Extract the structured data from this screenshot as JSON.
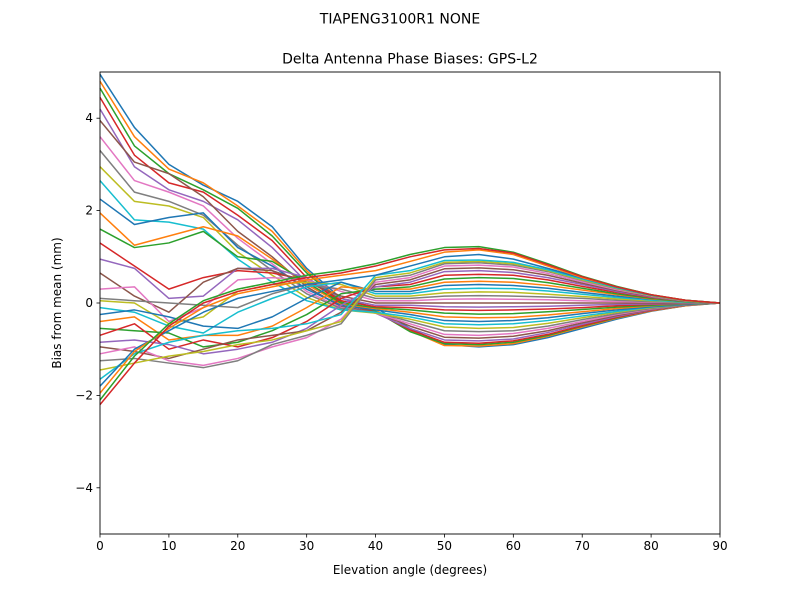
{
  "figure": {
    "suptitle": "TIAPENG3100R1   NONE"
  },
  "chart_data": {
    "type": "line",
    "title": "Delta Antenna Phase Biases: GPS-L2",
    "xlabel": "Elevation angle (degrees)",
    "ylabel": "Bias from mean (mm)",
    "xlim": [
      0,
      90
    ],
    "ylim": [
      -5,
      5
    ],
    "xticks": [
      0,
      10,
      20,
      30,
      40,
      50,
      60,
      70,
      80,
      90
    ],
    "yticks": [
      -4,
      -2,
      0,
      2,
      4
    ],
    "grid": false,
    "legend": "none",
    "x": [
      0,
      5,
      10,
      15,
      20,
      25,
      30,
      35,
      40,
      45,
      50,
      55,
      60,
      65,
      70,
      75,
      80,
      85,
      90
    ],
    "palette": [
      "#1f77b4",
      "#ff7f0e",
      "#2ca02c",
      "#d62728",
      "#9467bd",
      "#8c564b",
      "#e377c2",
      "#7f7f7f",
      "#bcbd22",
      "#17becf"
    ],
    "series": [
      {
        "values": [
          4.95,
          3.8,
          3.0,
          2.55,
          2.2,
          1.65,
          0.75,
          0.1,
          -0.1,
          -0.55,
          -0.9,
          -0.95,
          -0.9,
          -0.75,
          -0.55,
          -0.35,
          -0.18,
          -0.06,
          0.0
        ]
      },
      {
        "values": [
          4.8,
          3.6,
          2.9,
          2.6,
          2.1,
          1.55,
          0.7,
          0.05,
          -0.15,
          -0.6,
          -0.92,
          -0.93,
          -0.88,
          -0.72,
          -0.52,
          -0.33,
          -0.17,
          -0.06,
          0.0
        ]
      },
      {
        "values": [
          4.65,
          3.4,
          2.8,
          2.45,
          2.05,
          1.45,
          0.65,
          0.02,
          -0.18,
          -0.62,
          -0.88,
          -0.9,
          -0.85,
          -0.7,
          -0.5,
          -0.32,
          -0.16,
          -0.05,
          0.0
        ]
      },
      {
        "values": [
          4.45,
          3.2,
          2.6,
          2.4,
          1.9,
          1.35,
          0.55,
          0.0,
          -0.2,
          -0.58,
          -0.85,
          -0.87,
          -0.82,
          -0.68,
          -0.49,
          -0.31,
          -0.16,
          -0.05,
          0.0
        ]
      },
      {
        "values": [
          4.2,
          2.95,
          2.45,
          2.2,
          1.8,
          1.2,
          0.45,
          -0.05,
          -0.22,
          -0.55,
          -0.8,
          -0.82,
          -0.78,
          -0.64,
          -0.46,
          -0.29,
          -0.15,
          -0.05,
          0.0
        ]
      },
      {
        "values": [
          3.95,
          3.05,
          2.8,
          2.3,
          1.55,
          1.0,
          0.35,
          -0.08,
          -0.2,
          -0.5,
          -0.74,
          -0.76,
          -0.72,
          -0.6,
          -0.43,
          -0.27,
          -0.14,
          -0.05,
          0.0
        ]
      },
      {
        "values": [
          3.6,
          2.65,
          2.4,
          2.1,
          1.4,
          0.85,
          0.25,
          -0.1,
          -0.22,
          -0.45,
          -0.68,
          -0.7,
          -0.66,
          -0.55,
          -0.4,
          -0.25,
          -0.13,
          -0.04,
          0.0
        ]
      },
      {
        "values": [
          3.3,
          2.4,
          2.2,
          1.9,
          1.25,
          0.7,
          0.2,
          -0.12,
          -0.2,
          -0.4,
          -0.6,
          -0.62,
          -0.6,
          -0.5,
          -0.36,
          -0.23,
          -0.12,
          -0.04,
          0.0
        ]
      },
      {
        "values": [
          2.95,
          2.2,
          2.1,
          1.85,
          1.1,
          0.6,
          0.12,
          -0.15,
          -0.22,
          -0.35,
          -0.52,
          -0.55,
          -0.53,
          -0.44,
          -0.32,
          -0.2,
          -0.1,
          -0.03,
          0.0
        ]
      },
      {
        "values": [
          2.65,
          1.8,
          1.75,
          1.6,
          0.95,
          0.45,
          0.05,
          -0.15,
          -0.2,
          -0.3,
          -0.45,
          -0.47,
          -0.45,
          -0.38,
          -0.28,
          -0.18,
          -0.09,
          -0.03,
          0.0
        ]
      },
      {
        "values": [
          2.25,
          1.7,
          1.85,
          1.95,
          1.2,
          0.8,
          0.3,
          -0.05,
          -0.15,
          -0.25,
          -0.38,
          -0.4,
          -0.38,
          -0.32,
          -0.23,
          -0.15,
          -0.08,
          -0.03,
          0.0
        ]
      },
      {
        "values": [
          1.95,
          1.25,
          1.45,
          1.65,
          1.45,
          0.95,
          0.4,
          -0.02,
          -0.12,
          -0.2,
          -0.3,
          -0.32,
          -0.31,
          -0.26,
          -0.19,
          -0.12,
          -0.06,
          -0.02,
          0.0
        ]
      },
      {
        "values": [
          1.6,
          1.2,
          1.3,
          1.55,
          1.0,
          0.9,
          0.45,
          0.0,
          -0.1,
          -0.15,
          -0.22,
          -0.24,
          -0.23,
          -0.19,
          -0.14,
          -0.09,
          -0.05,
          -0.02,
          0.0
        ]
      },
      {
        "values": [
          1.3,
          0.8,
          0.3,
          0.55,
          0.7,
          0.65,
          0.5,
          0.05,
          -0.08,
          -0.1,
          -0.15,
          -0.16,
          -0.15,
          -0.13,
          -0.1,
          -0.06,
          -0.03,
          -0.01,
          0.0
        ]
      },
      {
        "values": [
          0.95,
          0.75,
          0.1,
          0.15,
          0.75,
          0.75,
          0.55,
          0.1,
          -0.05,
          -0.05,
          -0.08,
          -0.09,
          -0.08,
          -0.07,
          -0.05,
          -0.03,
          -0.02,
          -0.01,
          0.0
        ]
      },
      {
        "values": [
          0.65,
          0.15,
          -0.2,
          0.45,
          0.75,
          0.7,
          0.45,
          0.15,
          0.0,
          0.0,
          0.0,
          0.0,
          0.0,
          0.0,
          0.0,
          0.0,
          0.0,
          0.0,
          0.0
        ]
      },
      {
        "values": [
          0.3,
          0.35,
          -0.4,
          -0.1,
          0.5,
          0.55,
          0.5,
          0.25,
          0.05,
          0.05,
          0.08,
          0.09,
          0.08,
          0.07,
          0.05,
          0.03,
          0.02,
          0.01,
          0.0
        ]
      },
      {
        "values": [
          0.1,
          0.05,
          0.0,
          -0.05,
          -0.1,
          0.2,
          0.4,
          0.3,
          0.1,
          0.1,
          0.15,
          0.16,
          0.15,
          0.13,
          0.1,
          0.06,
          0.03,
          0.01,
          0.0
        ]
      },
      {
        "values": [
          0.05,
          0.0,
          -0.45,
          -0.3,
          0.25,
          0.4,
          0.45,
          0.4,
          0.15,
          0.15,
          0.22,
          0.24,
          0.23,
          0.19,
          0.14,
          0.09,
          0.05,
          0.02,
          0.0
        ]
      },
      {
        "values": [
          -0.1,
          -0.2,
          -0.5,
          -0.65,
          -0.2,
          0.1,
          0.35,
          0.45,
          0.2,
          0.2,
          0.3,
          0.32,
          0.31,
          0.26,
          0.19,
          0.12,
          0.06,
          0.02,
          0.0
        ]
      },
      {
        "values": [
          -0.25,
          -0.15,
          -0.3,
          -0.5,
          -0.55,
          -0.3,
          0.1,
          0.45,
          0.25,
          0.25,
          0.38,
          0.4,
          0.38,
          0.32,
          0.23,
          0.15,
          0.08,
          0.03,
          0.0
        ]
      },
      {
        "values": [
          -0.4,
          -0.3,
          -0.8,
          -0.7,
          -0.7,
          -0.5,
          -0.1,
          0.35,
          0.3,
          0.3,
          0.45,
          0.47,
          0.45,
          0.38,
          0.28,
          0.18,
          0.09,
          0.03,
          0.0
        ]
      },
      {
        "values": [
          -0.55,
          -0.6,
          -0.65,
          -0.95,
          -0.85,
          -0.6,
          -0.25,
          0.2,
          0.3,
          0.35,
          0.52,
          0.55,
          0.53,
          0.44,
          0.32,
          0.2,
          0.1,
          0.03,
          0.0
        ]
      },
      {
        "values": [
          -0.7,
          -0.45,
          -1.0,
          -0.8,
          -0.95,
          -0.75,
          -0.4,
          0.1,
          0.35,
          0.4,
          0.6,
          0.62,
          0.6,
          0.5,
          0.36,
          0.23,
          0.12,
          0.04,
          0.0
        ]
      },
      {
        "values": [
          -0.85,
          -0.8,
          -0.9,
          -1.1,
          -1.0,
          -0.85,
          -0.55,
          -0.05,
          0.35,
          0.45,
          0.68,
          0.7,
          0.66,
          0.55,
          0.4,
          0.25,
          0.13,
          0.04,
          0.0
        ]
      },
      {
        "values": [
          -0.95,
          -1.05,
          -1.2,
          -1.0,
          -0.8,
          -0.7,
          -0.6,
          -0.2,
          0.4,
          0.5,
          0.74,
          0.76,
          0.72,
          0.6,
          0.43,
          0.27,
          0.14,
          0.05,
          0.0
        ]
      },
      {
        "values": [
          -1.1,
          -0.95,
          -1.25,
          -1.35,
          -1.2,
          -0.95,
          -0.75,
          -0.35,
          0.45,
          0.55,
          0.8,
          0.82,
          0.78,
          0.64,
          0.46,
          0.29,
          0.15,
          0.05,
          0.0
        ]
      },
      {
        "values": [
          -1.25,
          -1.2,
          -1.3,
          -1.4,
          -1.25,
          -0.9,
          -0.7,
          -0.45,
          0.5,
          0.6,
          0.85,
          0.87,
          0.82,
          0.68,
          0.49,
          0.31,
          0.16,
          0.05,
          0.0
        ]
      },
      {
        "values": [
          -1.45,
          -1.3,
          -1.15,
          -1.05,
          -0.9,
          -0.8,
          -0.6,
          -0.4,
          0.55,
          0.65,
          0.88,
          0.9,
          0.85,
          0.7,
          0.5,
          0.32,
          0.16,
          0.05,
          0.0
        ]
      },
      {
        "values": [
          -1.65,
          -1.1,
          -0.85,
          -0.7,
          -0.6,
          -0.55,
          -0.45,
          -0.25,
          0.6,
          0.7,
          0.92,
          0.93,
          0.88,
          0.72,
          0.52,
          0.33,
          0.17,
          0.06,
          0.0
        ]
      },
      {
        "values": [
          -1.8,
          -1.0,
          -0.6,
          -0.2,
          0.1,
          0.25,
          0.4,
          0.5,
          0.6,
          0.8,
          1.0,
          1.05,
          0.95,
          0.75,
          0.54,
          0.34,
          0.17,
          0.06,
          0.0
        ]
      },
      {
        "values": [
          -1.95,
          -1.05,
          -0.55,
          -0.1,
          0.2,
          0.35,
          0.5,
          0.6,
          0.7,
          0.9,
          1.1,
          1.15,
          1.05,
          0.8,
          0.55,
          0.35,
          0.18,
          0.06,
          0.0
        ]
      },
      {
        "values": [
          -2.1,
          -1.15,
          -0.45,
          0.05,
          0.3,
          0.45,
          0.6,
          0.7,
          0.85,
          1.05,
          1.2,
          1.22,
          1.1,
          0.85,
          0.58,
          0.36,
          0.18,
          0.06,
          0.0
        ]
      },
      {
        "values": [
          -2.2,
          -1.3,
          -0.5,
          0.0,
          0.25,
          0.4,
          0.55,
          0.65,
          0.8,
          1.0,
          1.15,
          1.18,
          1.08,
          0.83,
          0.57,
          0.35,
          0.18,
          0.06,
          0.0
        ]
      }
    ]
  }
}
